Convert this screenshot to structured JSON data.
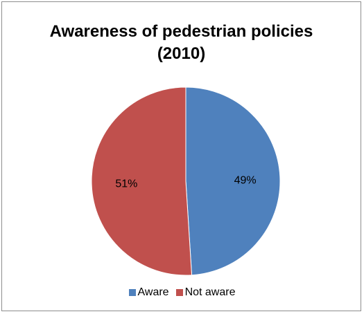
{
  "chart_data": {
    "type": "pie",
    "title": [
      "Awareness of pedestrian policies",
      "(2010)"
    ],
    "slices": [
      {
        "label": "Aware",
        "value": 49,
        "value_label": "49%",
        "color": "#4f81bd"
      },
      {
        "label": "Not aware",
        "value": 51,
        "value_label": "51%",
        "color": "#c0504d"
      }
    ],
    "legend_position": "bottom"
  }
}
